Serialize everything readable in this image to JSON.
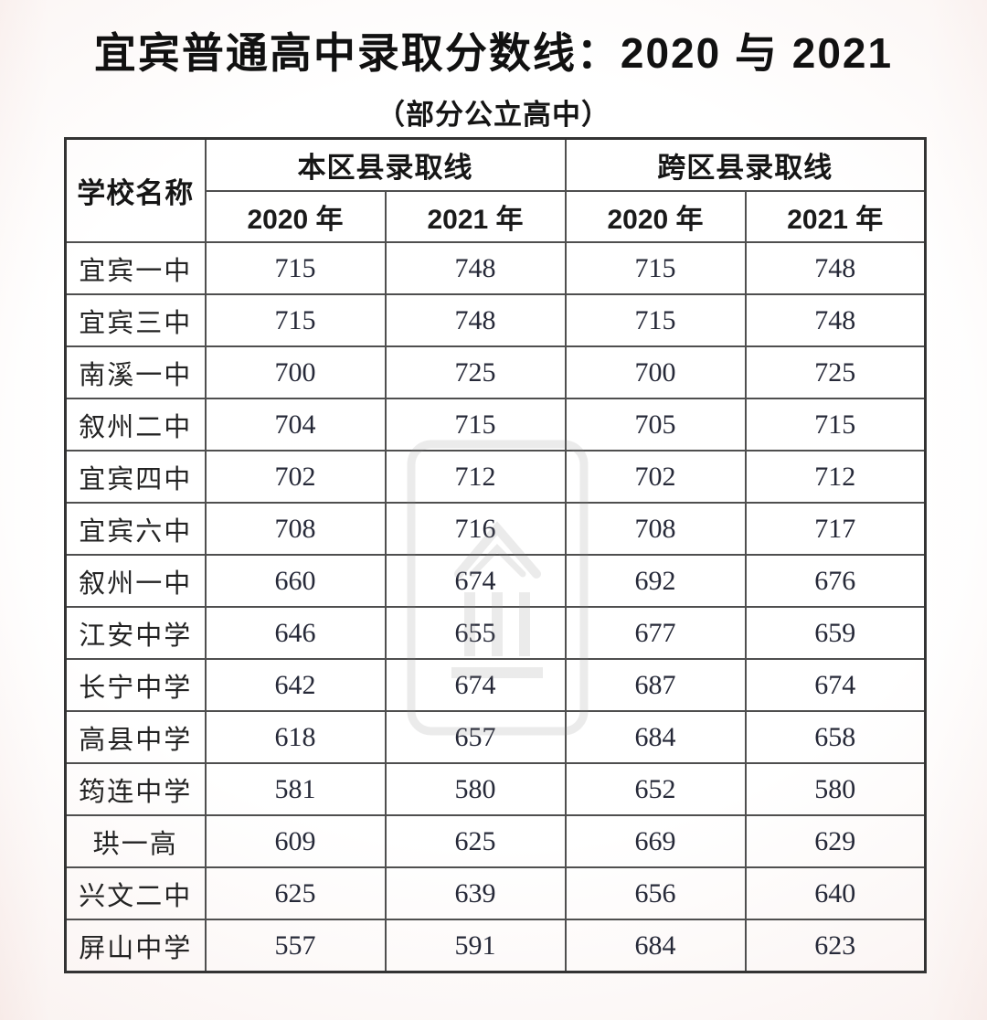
{
  "title": "宜宾普通高中录取分数线：2020 与 2021",
  "subtitle": "（部分公立高中）",
  "table": {
    "school_header": "学校名称",
    "group_local": "本区县录取线",
    "group_cross": "跨区县录取线",
    "year_headers": [
      "2020 年",
      "2021 年",
      "2020 年",
      "2021 年"
    ],
    "rows": [
      {
        "school": "宜宾一中",
        "values": [
          "715",
          "748",
          "715",
          "748"
        ]
      },
      {
        "school": "宜宾三中",
        "values": [
          "715",
          "748",
          "715",
          "748"
        ]
      },
      {
        "school": "南溪一中",
        "values": [
          "700",
          "725",
          "700",
          "725"
        ]
      },
      {
        "school": "叙州二中",
        "values": [
          "704",
          "715",
          "705",
          "715"
        ]
      },
      {
        "school": "宜宾四中",
        "values": [
          "702",
          "712",
          "702",
          "712"
        ]
      },
      {
        "school": "宜宾六中",
        "values": [
          "708",
          "716",
          "708",
          "717"
        ]
      },
      {
        "school": "叙州一中",
        "values": [
          "660",
          "674",
          "692",
          "676"
        ]
      },
      {
        "school": "江安中学",
        "values": [
          "646",
          "655",
          "677",
          "659"
        ]
      },
      {
        "school": "长宁中学",
        "values": [
          "642",
          "674",
          "687",
          "674"
        ]
      },
      {
        "school": "高县中学",
        "values": [
          "618",
          "657",
          "684",
          "658"
        ]
      },
      {
        "school": "筠连中学",
        "values": [
          "581",
          "580",
          "652",
          "580"
        ]
      },
      {
        "school": "珙一高",
        "values": [
          "609",
          "625",
          "669",
          "629"
        ]
      },
      {
        "school": "兴文二中",
        "values": [
          "625",
          "639",
          "656",
          "640"
        ]
      },
      {
        "school": "屏山中学",
        "values": [
          "557",
          "591",
          "684",
          "623"
        ]
      }
    ]
  },
  "colors": {
    "page_background": "#fefdfc",
    "edge_tint": "#f7eae7",
    "border": "#4f4f4f",
    "outer_border": "#333333",
    "title_text": "#111111",
    "score_text": "#262938",
    "watermark_gray": "#8a8a8a"
  }
}
